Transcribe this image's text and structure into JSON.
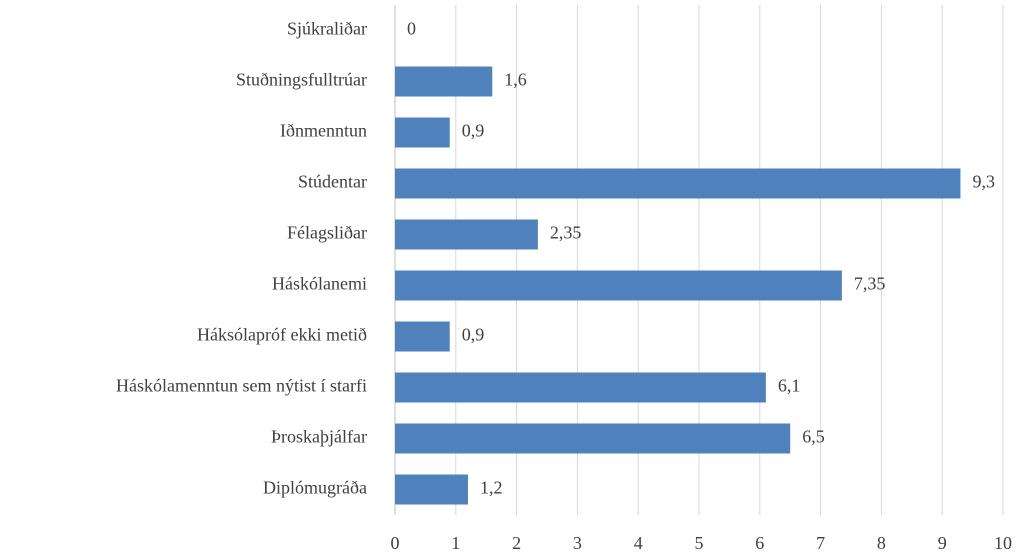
{
  "chart_data": {
    "type": "barh",
    "categories": [
      "Sjúkraliðar",
      "Stuðningsfulltrúar",
      "Iðnmenntun",
      "Stúdentar",
      "Félagsliðar",
      "Háskólanemi",
      "Háksólapróf ekki metið",
      "Háskólamenntun sem nýtist í starfi",
      "Þroskaþjálfar",
      "Diplómugráða"
    ],
    "values": [
      0,
      1.6,
      0.9,
      9.3,
      2.35,
      7.35,
      0.9,
      6.1,
      6.5,
      1.2
    ],
    "value_labels": [
      "0",
      "1,6",
      "0,9",
      "9,3",
      "2,35",
      "7,35",
      "0,9",
      "6,1",
      "6,5",
      "1,2"
    ],
    "color": "#4f81bd",
    "xlim": [
      0,
      10
    ],
    "xticks": [
      0,
      1,
      2,
      3,
      4,
      5,
      6,
      7,
      8,
      9,
      10
    ],
    "grid": true
  }
}
